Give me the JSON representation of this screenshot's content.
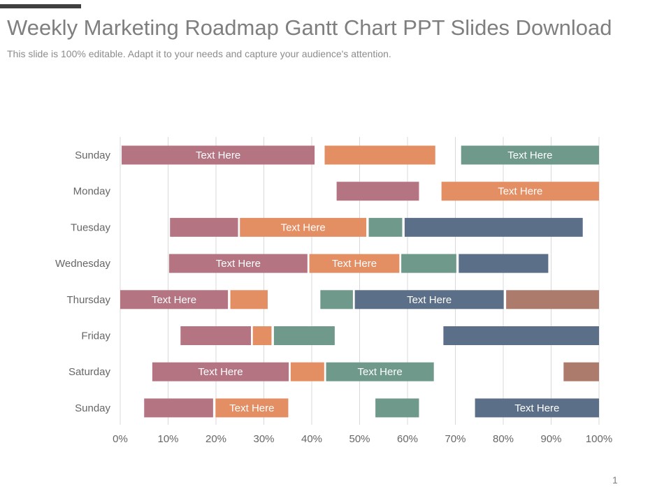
{
  "slide": {
    "title": "Weekly Marketing Roadmap Gantt Chart PPT Slides Download",
    "subtitle": "This slide is 100% editable. Adapt it to your needs and capture your audience's attention.",
    "page_number": "1"
  },
  "colors": {
    "rose": "#b57481",
    "orange": "#e38e63",
    "sage": "#6f9a8b",
    "slate": "#5c6f89",
    "brown": "#ad7b6c",
    "grid": "#d9d9d9",
    "axis_text": "#666666",
    "bar_text": "#ffffff"
  },
  "chart_data": {
    "type": "gantt",
    "x_range": [
      0,
      100
    ],
    "x_ticks": [
      "0%",
      "10%",
      "20%",
      "30%",
      "40%",
      "50%",
      "60%",
      "70%",
      "80%",
      "90%",
      "100%"
    ],
    "categories": [
      "Sunday",
      "Monday",
      "Tuesday",
      "Wednesday",
      "Thursday",
      "Friday",
      "Saturday",
      "Sunday"
    ],
    "rows": [
      {
        "label": "Sunday",
        "bars": [
          {
            "start": 0.3,
            "end": 40.6,
            "color": "rose",
            "text": "Text Here"
          },
          {
            "start": 42.7,
            "end": 65.8,
            "color": "orange",
            "text": ""
          },
          {
            "start": 71.2,
            "end": 100,
            "color": "sage",
            "text": "Text Here"
          }
        ]
      },
      {
        "label": "Monday",
        "bars": [
          {
            "start": 45.2,
            "end": 62.4,
            "color": "rose",
            "text": ""
          },
          {
            "start": 67.1,
            "end": 100,
            "color": "orange",
            "text": "Text Here"
          }
        ]
      },
      {
        "label": "Tuesday",
        "bars": [
          {
            "start": 10.4,
            "end": 24.6,
            "color": "rose",
            "text": ""
          },
          {
            "start": 25.0,
            "end": 51.4,
            "color": "orange",
            "text": "Text Here"
          },
          {
            "start": 51.9,
            "end": 58.9,
            "color": "sage",
            "text": ""
          },
          {
            "start": 59.4,
            "end": 96.6,
            "color": "slate",
            "text": ""
          }
        ]
      },
      {
        "label": "Wednesday",
        "bars": [
          {
            "start": 10.2,
            "end": 39.1,
            "color": "rose",
            "text": "Text Here"
          },
          {
            "start": 39.5,
            "end": 58.3,
            "color": "orange",
            "text": "Text Here"
          },
          {
            "start": 58.7,
            "end": 70.2,
            "color": "sage",
            "text": ""
          },
          {
            "start": 70.7,
            "end": 89.4,
            "color": "slate",
            "text": ""
          }
        ]
      },
      {
        "label": "Thursday",
        "bars": [
          {
            "start": 0,
            "end": 22.5,
            "color": "rose",
            "text": "Text Here"
          },
          {
            "start": 23.0,
            "end": 30.8,
            "color": "orange",
            "text": ""
          },
          {
            "start": 41.8,
            "end": 48.6,
            "color": "sage",
            "text": ""
          },
          {
            "start": 49.0,
            "end": 80.1,
            "color": "slate",
            "text": "Text Here"
          },
          {
            "start": 80.6,
            "end": 100,
            "color": "brown",
            "text": ""
          }
        ]
      },
      {
        "label": "Friday",
        "bars": [
          {
            "start": 12.6,
            "end": 27.3,
            "color": "rose",
            "text": ""
          },
          {
            "start": 27.7,
            "end": 31.6,
            "color": "orange",
            "text": ""
          },
          {
            "start": 32.1,
            "end": 44.8,
            "color": "sage",
            "text": ""
          },
          {
            "start": 67.5,
            "end": 100,
            "color": "slate",
            "text": ""
          }
        ]
      },
      {
        "label": "Saturday",
        "bars": [
          {
            "start": 6.7,
            "end": 35.2,
            "color": "rose",
            "text": "Text Here"
          },
          {
            "start": 35.6,
            "end": 42.6,
            "color": "orange",
            "text": ""
          },
          {
            "start": 43.0,
            "end": 65.5,
            "color": "sage",
            "text": "Text Here"
          },
          {
            "start": 92.6,
            "end": 100,
            "color": "brown",
            "text": ""
          }
        ]
      },
      {
        "label": "Sunday",
        "bars": [
          {
            "start": 5.0,
            "end": 19.4,
            "color": "rose",
            "text": ""
          },
          {
            "start": 19.9,
            "end": 35.1,
            "color": "orange",
            "text": "Text Here"
          },
          {
            "start": 53.3,
            "end": 62.4,
            "color": "sage",
            "text": ""
          },
          {
            "start": 74.1,
            "end": 100,
            "color": "slate",
            "text": "Text Here"
          }
        ]
      }
    ]
  }
}
